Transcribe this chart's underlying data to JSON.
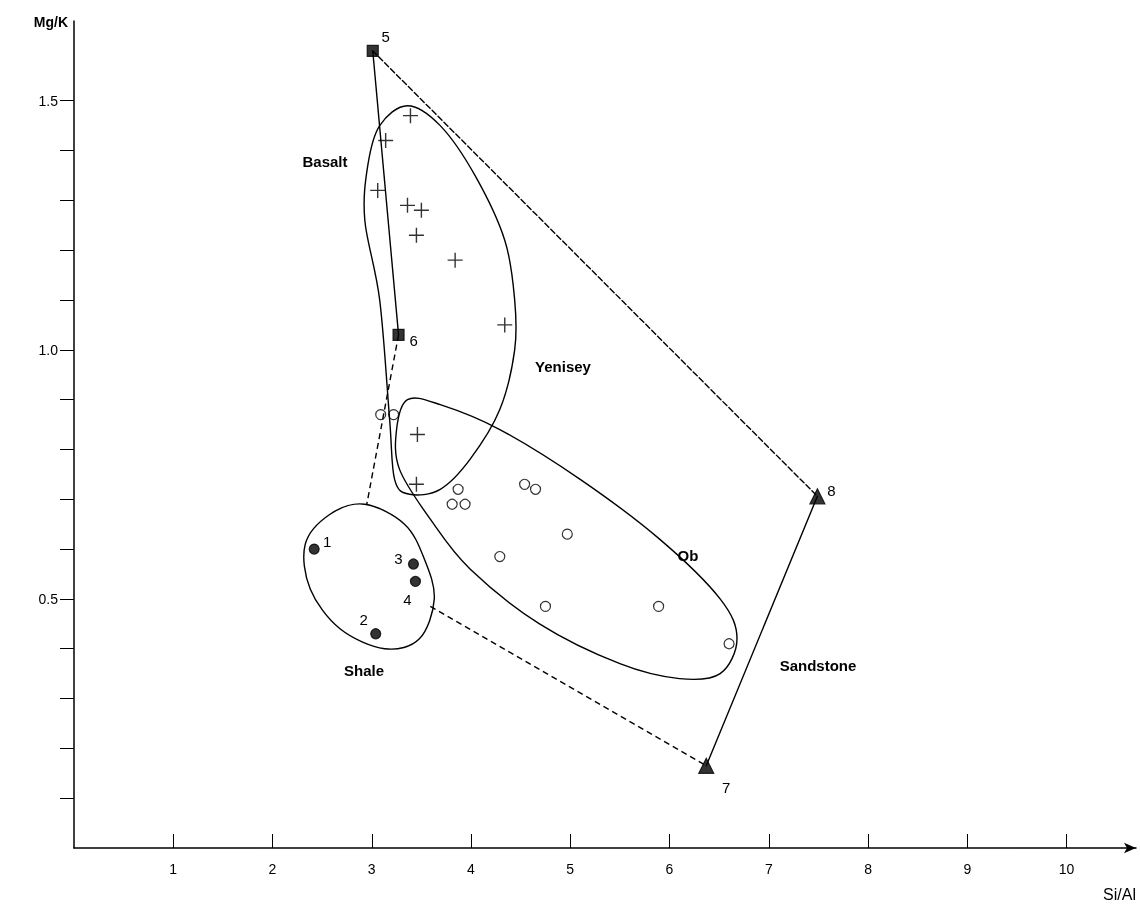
{
  "chart_data": {
    "type": "scatter",
    "xlabel": "Si/Al",
    "ylabel": "Mg/K",
    "xlim": [
      0,
      10.7
    ],
    "xticks": [
      1,
      2,
      3,
      4,
      5,
      6,
      7,
      8,
      9,
      10
    ],
    "ylim": [
      0,
      1.66
    ],
    "yticks": [
      {
        "value": 0.1,
        "label": null
      },
      {
        "value": 0.2,
        "label": null
      },
      {
        "value": 0.3,
        "label": null
      },
      {
        "value": 0.4,
        "label": null
      },
      {
        "value": 0.5,
        "label": "0.5"
      },
      {
        "value": 0.6,
        "label": null
      },
      {
        "value": 0.7,
        "label": null
      },
      {
        "value": 0.8,
        "label": null
      },
      {
        "value": 0.9,
        "label": null
      },
      {
        "value": 1,
        "label": "1.0"
      },
      {
        "value": 1.1,
        "label": null
      },
      {
        "value": 1.2,
        "label": null
      },
      {
        "value": 1.3,
        "label": null
      },
      {
        "value": 1.4,
        "label": null
      },
      {
        "value": 1.5,
        "label": "1.5"
      }
    ],
    "grid": false,
    "series": [
      {
        "type": "line",
        "color": "#000000",
        "marker": "none",
        "line_style": "solid",
        "x": [
          3.01,
          3.27
        ],
        "values": [
          1.6,
          1.03
        ]
      },
      {
        "type": "line",
        "color": "#000000",
        "marker": "none",
        "line_style": "solid",
        "x": [
          6.37,
          7.49
        ],
        "values": [
          0.165,
          0.706
        ]
      },
      {
        "type": "line",
        "color": "#000000",
        "marker": "none",
        "line_style": "dashed",
        "x": [
          3.01,
          7.49
        ],
        "values": [
          1.6,
          0.706
        ]
      },
      {
        "color": "#000000",
        "marker": "circle",
        "x": [
          2.42,
          3.04,
          3.42,
          3.44
        ],
        "values": [
          0.6,
          0.43,
          0.57,
          0.535
        ]
      },
      {
        "color": "#000000",
        "marker": "square",
        "x": [
          3.01,
          3.27
        ],
        "values": [
          1.6,
          1.03
        ]
      },
      {
        "color": "#000000",
        "marker": "triangle",
        "x": [
          6.37,
          7.49
        ],
        "values": [
          0.165,
          0.706
        ]
      },
      {
        "color": "#000000",
        "marker": "cross",
        "x": [
          3.39,
          3.14,
          3.06,
          3.36,
          3.5,
          3.45,
          3.84,
          4.34,
          3.46,
          3.45
        ],
        "values": [
          1.47,
          1.42,
          1.32,
          1.29,
          1.28,
          1.23,
          1.18,
          1.05,
          0.83,
          0.73
        ]
      },
      {
        "color": "#ffffff",
        "marker": "circle",
        "x": [
          3.09,
          3.22,
          3.87,
          3.81,
          3.94,
          4.54,
          4.65,
          4.97,
          4.29,
          4.75,
          5.89,
          6.6
        ],
        "values": [
          0.87,
          0.87,
          0.72,
          0.69,
          0.69,
          0.73,
          0.72,
          0.63,
          0.585,
          0.485,
          0.485,
          0.41
        ]
      }
    ],
    "annotations": [
      "Basalt",
      "Yenisey",
      "Ob",
      "Shale",
      "Sandstone",
      {
        "text": "1",
        "x": 2.42,
        "y": 0.6
      },
      {
        "text": "2",
        "x": 3.04,
        "y": 0.43
      },
      {
        "text": "3",
        "x": 3.42,
        "y": 0.57
      },
      {
        "text": "4",
        "x": 3.44,
        "y": 0.535
      },
      {
        "text": "5",
        "x": 3.01,
        "y": 1.6
      },
      {
        "text": "6",
        "x": 3.27,
        "y": 1.03
      },
      {
        "text": "7",
        "x": 6.37,
        "y": 0.165
      },
      {
        "text": "8",
        "x": 7.49,
        "y": 0.706
      }
    ]
  }
}
